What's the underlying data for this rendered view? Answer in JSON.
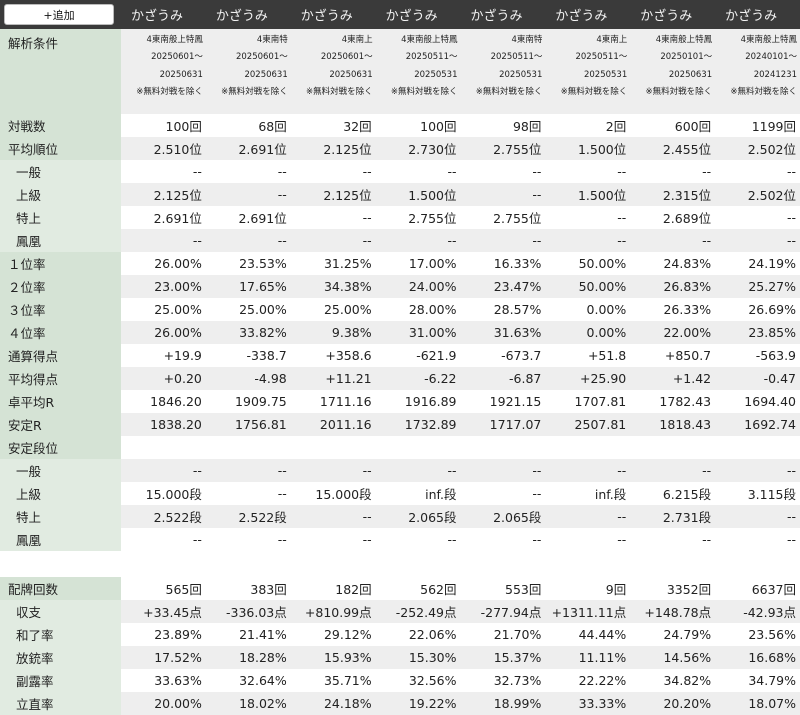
{
  "add_button_label": "+追加",
  "columns": [
    "かざうみ",
    "かざうみ",
    "かざうみ",
    "かざうみ",
    "かざうみ",
    "かざうみ",
    "かざうみ",
    "かざうみ"
  ],
  "condition_label": "解析条件",
  "conditions": [
    {
      "rule": "4東南般上特鳳",
      "start": "20250601～",
      "end": "20250631",
      "note": "※無料対戦を除く"
    },
    {
      "rule": "4東南特",
      "start": "20250601～",
      "end": "20250631",
      "note": "※無料対戦を除く"
    },
    {
      "rule": "4東南上",
      "start": "20250601～",
      "end": "20250631",
      "note": "※無料対戦を除く"
    },
    {
      "rule": "4東南般上特鳳",
      "start": "20250511～",
      "end": "20250531",
      "note": "※無料対戦を除く"
    },
    {
      "rule": "4東南特",
      "start": "20250511～",
      "end": "20250531",
      "note": "※無料対戦を除く"
    },
    {
      "rule": "4東南上",
      "start": "20250511～",
      "end": "20250531",
      "note": "※無料対戦を除く"
    },
    {
      "rule": "4東南般上特鳳",
      "start": "20250101～",
      "end": "20250631",
      "note": "※無料対戦を除く"
    },
    {
      "rule": "4東南般上特鳳",
      "start": "20240101～",
      "end": "20241231",
      "note": "※無料対戦を除く"
    }
  ],
  "rows": [
    {
      "label": "対戦数",
      "sub": false,
      "values": [
        "100回",
        "68回",
        "32回",
        "100回",
        "98回",
        "2回",
        "600回",
        "1199回"
      ]
    },
    {
      "label": "平均順位",
      "sub": false,
      "values": [
        "2.510位",
        "2.691位",
        "2.125位",
        "2.730位",
        "2.755位",
        "1.500位",
        "2.455位",
        "2.502位"
      ]
    },
    {
      "label": "一般",
      "sub": true,
      "values": [
        "--",
        "--",
        "--",
        "--",
        "--",
        "--",
        "--",
        "--"
      ]
    },
    {
      "label": "上級",
      "sub": true,
      "values": [
        "2.125位",
        "--",
        "2.125位",
        "1.500位",
        "--",
        "1.500位",
        "2.315位",
        "2.502位"
      ]
    },
    {
      "label": "特上",
      "sub": true,
      "values": [
        "2.691位",
        "2.691位",
        "--",
        "2.755位",
        "2.755位",
        "--",
        "2.689位",
        "--"
      ]
    },
    {
      "label": "鳳凰",
      "sub": true,
      "values": [
        "--",
        "--",
        "--",
        "--",
        "--",
        "--",
        "--",
        "--"
      ]
    },
    {
      "label": "１位率",
      "sub": false,
      "values": [
        "26.00%",
        "23.53%",
        "31.25%",
        "17.00%",
        "16.33%",
        "50.00%",
        "24.83%",
        "24.19%"
      ]
    },
    {
      "label": "２位率",
      "sub": false,
      "values": [
        "23.00%",
        "17.65%",
        "34.38%",
        "24.00%",
        "23.47%",
        "50.00%",
        "26.83%",
        "25.27%"
      ]
    },
    {
      "label": "３位率",
      "sub": false,
      "values": [
        "25.00%",
        "25.00%",
        "25.00%",
        "28.00%",
        "28.57%",
        "0.00%",
        "26.33%",
        "26.69%"
      ]
    },
    {
      "label": "４位率",
      "sub": false,
      "values": [
        "26.00%",
        "33.82%",
        "9.38%",
        "31.00%",
        "31.63%",
        "0.00%",
        "22.00%",
        "23.85%"
      ]
    },
    {
      "label": "通算得点",
      "sub": false,
      "values": [
        "+19.9",
        "-338.7",
        "+358.6",
        "-621.9",
        "-673.7",
        "+51.8",
        "+850.7",
        "-563.9"
      ]
    },
    {
      "label": "平均得点",
      "sub": false,
      "values": [
        "+0.20",
        "-4.98",
        "+11.21",
        "-6.22",
        "-6.87",
        "+25.90",
        "+1.42",
        "-0.47"
      ]
    },
    {
      "label": "卓平均R",
      "sub": false,
      "values": [
        "1846.20",
        "1909.75",
        "1711.16",
        "1916.89",
        "1921.15",
        "1707.81",
        "1782.43",
        "1694.40"
      ]
    },
    {
      "label": "安定R",
      "sub": false,
      "values": [
        "1838.20",
        "1756.81",
        "2011.16",
        "1732.89",
        "1717.07",
        "2507.81",
        "1818.43",
        "1692.74"
      ]
    },
    {
      "label": "安定段位",
      "sub": false,
      "values": [
        "",
        "",
        "",
        "",
        "",
        "",
        "",
        ""
      ]
    },
    {
      "label": "一般",
      "sub": true,
      "values": [
        "--",
        "--",
        "--",
        "--",
        "--",
        "--",
        "--",
        "--"
      ]
    },
    {
      "label": "上級",
      "sub": true,
      "values": [
        "15.000段",
        "--",
        "15.000段",
        "inf.段",
        "--",
        "inf.段",
        "6.215段",
        "3.115段"
      ]
    },
    {
      "label": "特上",
      "sub": true,
      "values": [
        "2.522段",
        "2.522段",
        "--",
        "2.065段",
        "2.065段",
        "--",
        "2.731段",
        "--"
      ]
    },
    {
      "label": "鳳凰",
      "sub": true,
      "values": [
        "--",
        "--",
        "--",
        "--",
        "--",
        "--",
        "--",
        "--"
      ]
    }
  ],
  "rows2": [
    {
      "label": "配牌回数",
      "sub": false,
      "values": [
        "565回",
        "383回",
        "182回",
        "562回",
        "553回",
        "9回",
        "3352回",
        "6637回"
      ]
    },
    {
      "label": "収支",
      "sub": true,
      "values": [
        "+33.45点",
        "-336.03点",
        "+810.99点",
        "-252.49点",
        "-277.94点",
        "+1311.11点",
        "+148.78点",
        "-42.93点"
      ]
    },
    {
      "label": "和了率",
      "sub": true,
      "values": [
        "23.89%",
        "21.41%",
        "29.12%",
        "22.06%",
        "21.70%",
        "44.44%",
        "24.79%",
        "23.56%"
      ]
    },
    {
      "label": "放銃率",
      "sub": true,
      "values": [
        "17.52%",
        "18.28%",
        "15.93%",
        "15.30%",
        "15.37%",
        "11.11%",
        "14.56%",
        "16.68%"
      ]
    },
    {
      "label": "副露率",
      "sub": true,
      "values": [
        "33.63%",
        "32.64%",
        "35.71%",
        "32.56%",
        "32.73%",
        "22.22%",
        "34.82%",
        "34.79%"
      ]
    },
    {
      "label": "立直率",
      "sub": true,
      "values": [
        "20.00%",
        "18.02%",
        "24.18%",
        "19.22%",
        "18.99%",
        "33.33%",
        "20.20%",
        "18.07%"
      ]
    }
  ]
}
